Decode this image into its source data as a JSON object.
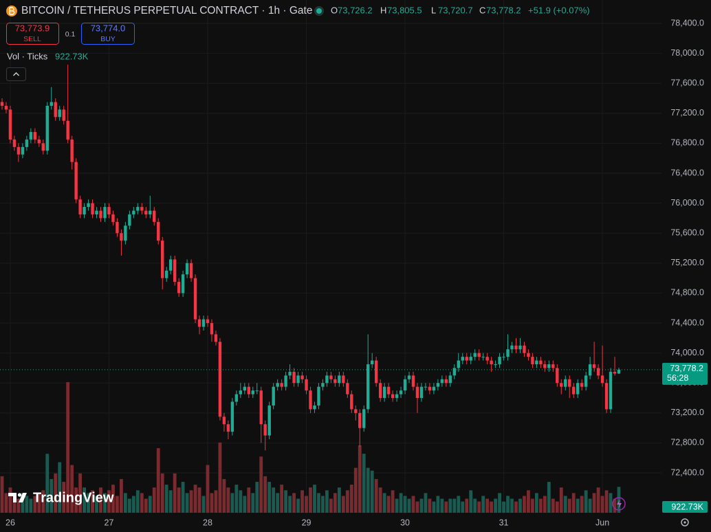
{
  "header": {
    "title": "BITCOIN / TETHERUS PERPETUAL CONTRACT · 1h · Gate",
    "ohlc": [
      {
        "k": "O",
        "v": "73,726.2"
      },
      {
        "k": "H",
        "v": "73,805.5"
      },
      {
        "k": "L",
        "v": "73,720.7"
      },
      {
        "k": "C",
        "v": "73,778.2"
      }
    ],
    "change": "+51.9 (+0.07%)",
    "sell_price": "73,773.9",
    "sell": "SELL",
    "spread": "0.1",
    "buy_price": "73,774.0",
    "buy": "BUY",
    "volume_name": "Vol · Ticks"
  },
  "branding": "TradingView",
  "chart_data": {
    "type": "candlestick",
    "categories": [
      null,
      null,
      "26",
      null,
      null,
      null,
      null,
      null,
      null,
      null,
      null,
      null,
      null,
      null,
      null,
      null,
      null,
      null,
      null,
      null,
      null,
      null,
      null,
      null,
      null,
      null,
      "27",
      null,
      null,
      null,
      null,
      null,
      null,
      null,
      null,
      null,
      null,
      null,
      null,
      null,
      null,
      null,
      null,
      null,
      null,
      null,
      null,
      null,
      null,
      null,
      "28",
      null,
      null,
      null,
      null,
      null,
      null,
      null,
      null,
      null,
      null,
      null,
      null,
      null,
      null,
      null,
      null,
      null,
      null,
      null,
      null,
      null,
      null,
      null,
      "29",
      null,
      null,
      null,
      null,
      null,
      null,
      null,
      null,
      null,
      null,
      null,
      null,
      null,
      null,
      null,
      null,
      null,
      null,
      null,
      null,
      null,
      null,
      null,
      "30",
      null,
      null,
      null,
      null,
      null,
      null,
      null,
      null,
      null,
      null,
      null,
      null,
      null,
      null,
      null,
      null,
      null,
      null,
      null,
      null,
      null,
      null,
      null,
      "31",
      null,
      null,
      null,
      null,
      null,
      null,
      null,
      null,
      null,
      null,
      null,
      null,
      null,
      null,
      null,
      null,
      null,
      null,
      null,
      null,
      null,
      null,
      null,
      "Jun",
      null,
      null,
      null,
      null
    ],
    "open": [
      77350,
      77300,
      77250,
      76850,
      76750,
      76650,
      76750,
      76850,
      76950,
      76850,
      76800,
      76700,
      77300,
      77350,
      77150,
      77250,
      77100,
      76850,
      76550,
      76050,
      75850,
      75950,
      76000,
      75850,
      75900,
      75800,
      75950,
      75850,
      75750,
      75600,
      75500,
      75700,
      75850,
      75900,
      75950,
      75900,
      75850,
      75900,
      75750,
      75500,
      75000,
      75100,
      75250,
      74950,
      74800,
      75050,
      75200,
      75000,
      74450,
      74350,
      74450,
      74400,
      74250,
      74150,
      73150,
      73050,
      72950,
      73350,
      73450,
      73500,
      73550,
      73450,
      73500,
      73500,
      73050,
      72900,
      73300,
      73550,
      73600,
      73550,
      73700,
      73750,
      73600,
      73700,
      73650,
      73500,
      73250,
      73300,
      73550,
      73600,
      73700,
      73650,
      73600,
      73700,
      73600,
      73450,
      73250,
      73200,
      73000,
      73250,
      73850,
      73900,
      73600,
      73400,
      73550,
      73450,
      73400,
      73450,
      73500,
      73650,
      73700,
      73550,
      73400,
      73550,
      73550,
      73500,
      73550,
      73600,
      73650,
      73600,
      73700,
      73800,
      73900,
      73950,
      73900,
      73950,
      74000,
      73950,
      73950,
      73900,
      73850,
      73850,
      73950,
      73950,
      74050,
      74100,
      74050,
      74100,
      74000,
      73950,
      73850,
      73900,
      73850,
      73800,
      73850,
      73800,
      73600,
      73550,
      73650,
      73550,
      73450,
      73600,
      73550,
      73700,
      73850,
      73800,
      73700,
      73600,
      73250,
      73750,
      73726.2
    ],
    "high": [
      77400,
      77350,
      77300,
      76900,
      76800,
      76800,
      76900,
      77000,
      77000,
      76900,
      76850,
      77350,
      77550,
      77400,
      77300,
      77300,
      77850,
      76900,
      76600,
      76100,
      76000,
      76050,
      76050,
      75950,
      75950,
      76000,
      76000,
      75900,
      75800,
      75650,
      75750,
      75900,
      75950,
      76000,
      76000,
      75950,
      76100,
      75950,
      75800,
      75550,
      75150,
      75300,
      75300,
      75000,
      75100,
      75250,
      75250,
      75050,
      74500,
      74500,
      74500,
      74450,
      74300,
      74200,
      73200,
      73100,
      73400,
      73500,
      73600,
      73600,
      73600,
      73550,
      73600,
      73550,
      73100,
      73350,
      73600,
      73650,
      73650,
      73750,
      73850,
      73800,
      73750,
      73750,
      73700,
      73550,
      73350,
      73600,
      73650,
      73750,
      73750,
      73700,
      73750,
      73750,
      73650,
      73500,
      73300,
      73250,
      73300,
      74250,
      74000,
      73950,
      73650,
      73600,
      73600,
      73500,
      73500,
      73550,
      73700,
      73750,
      73750,
      73600,
      73600,
      73600,
      73600,
      73600,
      73650,
      73700,
      73700,
      73750,
      73850,
      74000,
      74000,
      74000,
      74000,
      74050,
      74050,
      74000,
      74000,
      73950,
      73900,
      74000,
      74000,
      74250,
      74150,
      74200,
      74200,
      74150,
      74050,
      74000,
      73950,
      73950,
      73900,
      73900,
      73900,
      73850,
      73650,
      73700,
      73700,
      73600,
      73650,
      73650,
      73750,
      73950,
      74150,
      73850,
      74100,
      73650,
      73800,
      73950,
      73805.5
    ],
    "low": [
      77250,
      77200,
      76800,
      76700,
      76550,
      76600,
      76700,
      76800,
      76800,
      76750,
      76650,
      76650,
      77250,
      77100,
      77100,
      77050,
      76800,
      76450,
      76000,
      75800,
      75800,
      75900,
      75800,
      75800,
      75750,
      75750,
      75800,
      75700,
      75550,
      75300,
      75450,
      75650,
      75800,
      75850,
      75850,
      75800,
      75800,
      75700,
      75450,
      74850,
      74950,
      75050,
      74900,
      74750,
      74750,
      75000,
      74950,
      74400,
      74250,
      74300,
      74350,
      74150,
      74100,
      73100,
      72950,
      72850,
      72900,
      73300,
      73400,
      73450,
      73400,
      73400,
      73450,
      72800,
      72700,
      72850,
      73250,
      73500,
      73500,
      73500,
      73650,
      73550,
      73550,
      73600,
      73450,
      73200,
      73200,
      73250,
      73500,
      73550,
      73600,
      73550,
      73550,
      73550,
      73400,
      73200,
      73100,
      72750,
      72950,
      73200,
      73800,
      73550,
      73350,
      73350,
      73400,
      73350,
      73350,
      73400,
      73450,
      73600,
      73500,
      73200,
      73350,
      73500,
      73450,
      73450,
      73500,
      73550,
      73550,
      73550,
      73650,
      73750,
      73850,
      73850,
      73850,
      73900,
      73900,
      73900,
      73850,
      73750,
      73800,
      73800,
      73900,
      73900,
      74000,
      74000,
      74000,
      73950,
      73900,
      73800,
      73800,
      73800,
      73750,
      73750,
      73750,
      73550,
      73450,
      73500,
      73400,
      73400,
      73400,
      73500,
      73500,
      73650,
      73750,
      73650,
      73550,
      73200,
      73200,
      73700,
      73720.7
    ],
    "close": [
      77300,
      77250,
      76850,
      76750,
      76650,
      76750,
      76850,
      76950,
      76850,
      76800,
      76700,
      77300,
      77350,
      77150,
      77250,
      77100,
      76850,
      76550,
      76050,
      75850,
      75950,
      76000,
      75850,
      75900,
      75800,
      75950,
      75850,
      75750,
      75600,
      75500,
      75700,
      75850,
      75900,
      75950,
      75900,
      75850,
      75900,
      75750,
      75500,
      75000,
      75100,
      75250,
      74950,
      74800,
      75050,
      75200,
      75000,
      74450,
      74350,
      74450,
      74400,
      74250,
      74150,
      73150,
      73050,
      72950,
      73350,
      73450,
      73500,
      73550,
      73450,
      73500,
      73500,
      73050,
      72900,
      73300,
      73550,
      73600,
      73550,
      73700,
      73750,
      73600,
      73700,
      73650,
      73500,
      73250,
      73300,
      73550,
      73600,
      73700,
      73650,
      73600,
      73700,
      73600,
      73450,
      73250,
      73200,
      73000,
      73250,
      73850,
      73900,
      73600,
      73400,
      73550,
      73450,
      73400,
      73450,
      73500,
      73650,
      73700,
      73550,
      73400,
      73550,
      73550,
      73500,
      73550,
      73600,
      73650,
      73600,
      73700,
      73800,
      73900,
      73950,
      73900,
      73950,
      74000,
      73950,
      73950,
      73900,
      73850,
      73850,
      73950,
      73950,
      74050,
      74100,
      74050,
      74100,
      74000,
      73950,
      73850,
      73900,
      73850,
      73800,
      73850,
      73800,
      73600,
      73550,
      73650,
      73550,
      73450,
      73600,
      73550,
      73700,
      73850,
      73800,
      73700,
      73600,
      73250,
      73750,
      73726.2,
      73778.2
    ],
    "volume": [
      1300,
      700,
      900,
      600,
      500,
      700,
      600,
      500,
      600,
      700,
      800,
      2100,
      1200,
      1400,
      1800,
      1100,
      4650,
      1700,
      900,
      1400,
      900,
      700,
      800,
      600,
      900,
      700,
      800,
      1000,
      600,
      1200,
      700,
      500,
      600,
      800,
      700,
      500,
      600,
      900,
      2300,
      1400,
      1000,
      800,
      1400,
      900,
      1100,
      700,
      800,
      1000,
      900,
      600,
      1700,
      700,
      800,
      2500,
      1200,
      900,
      700,
      1000,
      800,
      600,
      900,
      700,
      1100,
      2000,
      1300,
      1100,
      900,
      700,
      1000,
      800,
      600,
      700,
      500,
      800,
      600,
      900,
      1000,
      700,
      600,
      800,
      500,
      700,
      900,
      600,
      800,
      1000,
      1600,
      2400,
      2100,
      1600,
      1500,
      1200,
      900,
      700,
      600,
      800,
      500,
      700,
      600,
      500,
      600,
      400,
      500,
      700,
      500,
      400,
      600,
      500,
      400,
      500,
      500,
      600,
      400,
      500,
      800,
      500,
      400,
      600,
      500,
      400,
      500,
      700,
      400,
      600,
      500,
      400,
      500,
      600,
      800,
      500,
      700,
      500,
      600,
      1100,
      500,
      400,
      900,
      600,
      500,
      700,
      500,
      600,
      800,
      500,
      700,
      900,
      600,
      800,
      700,
      500,
      922.73
    ],
    "volume_label": "922.73K",
    "last_price_label": "73,778.2",
    "countdown": "56:28",
    "ylim": [
      71850,
      78712
    ],
    "yticks": [
      {
        "value": 72400,
        "label": "72,400.0"
      },
      {
        "value": 72800,
        "label": "72,800.0"
      },
      {
        "value": 73200,
        "label": "73,200.0"
      },
      {
        "value": 73600,
        "label": "73,600.0"
      },
      {
        "value": 74000,
        "label": "74,000.0"
      },
      {
        "value": 74400,
        "label": "74,400.0"
      },
      {
        "value": 74800,
        "label": "74,800.0"
      },
      {
        "value": 75200,
        "label": "75,200.0"
      },
      {
        "value": 75600,
        "label": "75,600.0"
      },
      {
        "value": 76000,
        "label": "76,000.0"
      },
      {
        "value": 76400,
        "label": "76,400.0"
      },
      {
        "value": 76800,
        "label": "76,800.0"
      },
      {
        "value": 77200,
        "label": "77,200.0"
      },
      {
        "value": 77600,
        "label": "77,600.0"
      },
      {
        "value": 78000,
        "label": "78,000.0"
      },
      {
        "value": 78400,
        "label": "78,400.0"
      }
    ],
    "up_color": "#22ab94",
    "down_color": "#f23645",
    "grid": true
  }
}
